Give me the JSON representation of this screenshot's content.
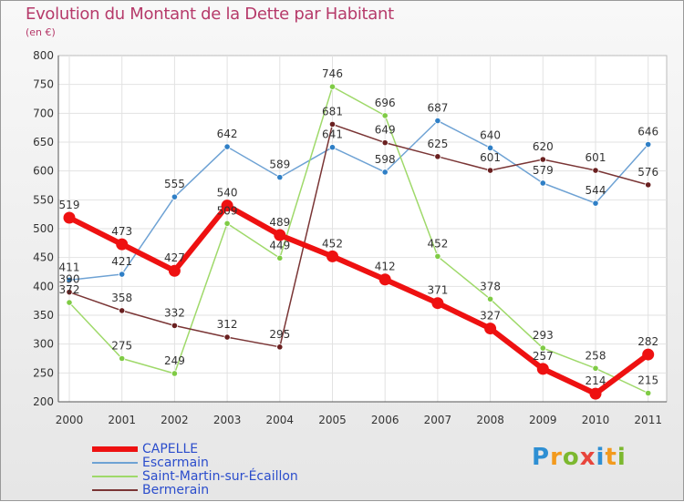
{
  "title": "Evolution du Montant de la Dette par Habitant",
  "subtitle": "(en €)",
  "chart_data": {
    "type": "line",
    "title": "Evolution du Montant de la Dette par Habitant",
    "subtitle": "(en €)",
    "x": [
      "2000",
      "2001",
      "2002",
      "2003",
      "2004",
      "2005",
      "2006",
      "2007",
      "2008",
      "2009",
      "2010",
      "2011"
    ],
    "ylim": [
      200,
      800
    ],
    "yticks": [
      200,
      250,
      300,
      350,
      400,
      450,
      500,
      550,
      600,
      650,
      700,
      750,
      800
    ],
    "grid": true,
    "legend_position": "bottom-left",
    "series": [
      {
        "name": "Escarmain",
        "color": "#6ea2d4",
        "marker": "#2f7fc6",
        "width": 1.5,
        "marker_r": 3.2,
        "values": [
          411,
          421,
          555,
          642,
          589,
          641,
          598,
          687,
          640,
          579,
          544,
          646
        ]
      },
      {
        "name": "Saint-Martin-sur-Écaillon",
        "color": "#9fd96a",
        "marker": "#7fcb45",
        "width": 1.5,
        "marker_r": 3.2,
        "values": [
          372,
          275,
          249,
          509,
          449,
          746,
          696,
          452,
          378,
          293,
          258,
          215
        ]
      },
      {
        "name": "Bermerain",
        "color": "#7a3535",
        "marker": "#6a2020",
        "width": 1.5,
        "marker_r": 3.2,
        "values": [
          390,
          358,
          332,
          312,
          295,
          681,
          649,
          625,
          601,
          620,
          601,
          576
        ]
      },
      {
        "name": "CAPELLE",
        "color": "#ee1111",
        "marker": "#ee1111",
        "width": 6,
        "marker_r": 6.5,
        "values": [
          519,
          473,
          427,
          540,
          489,
          452,
          412,
          371,
          327,
          257,
          214,
          282
        ]
      }
    ]
  },
  "legend": [
    {
      "label": "CAPELLE",
      "color": "#ee1111",
      "text_color": "#2b4dcc",
      "thickness": 6
    },
    {
      "label": "Escarmain",
      "color": "#6ea2d4",
      "text_color": "#2b4dcc",
      "thickness": 2
    },
    {
      "label": "Saint-Martin-sur-Écaillon",
      "color": "#9fd96a",
      "text_color": "#2b4dcc",
      "thickness": 2
    },
    {
      "label": "Bermerain",
      "color": "#7a3535",
      "text_color": "#2b4dcc",
      "thickness": 2
    }
  ],
  "logo": {
    "brand": "Proxiti",
    "colors": [
      "#2e8fd3",
      "#f39a1d",
      "#7cb82f",
      "#e8453c",
      "#2e8fd3",
      "#f39a1d",
      "#7cb82f"
    ]
  }
}
